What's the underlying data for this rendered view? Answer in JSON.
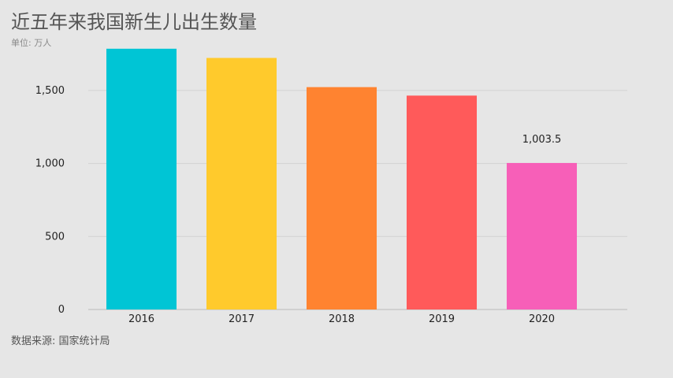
{
  "title": "近五年来我国新生儿出生数量",
  "subtitle": "单位: 万人",
  "source": "数据来源: 国家统计局",
  "chart_data": {
    "type": "bar",
    "categories": [
      "2016",
      "2017",
      "2018",
      "2019",
      "2020"
    ],
    "values": [
      1786,
      1723,
      1523,
      1465,
      1003.5
    ],
    "colors": [
      "#00c5d5",
      "#ffca2c",
      "#ff8330",
      "#ff5a5a",
      "#f75fb8"
    ],
    "data_labels": [
      {
        "index": 4,
        "text": "1,003.5"
      }
    ],
    "yticks": [
      {
        "value": 0,
        "label": "0"
      },
      {
        "value": 500,
        "label": "500"
      },
      {
        "value": 1000,
        "label": "1,000"
      },
      {
        "value": 1500,
        "label": "1,500"
      }
    ],
    "ylim": [
      0,
      1850
    ],
    "grid": true,
    "xlabel": "",
    "ylabel": ""
  }
}
